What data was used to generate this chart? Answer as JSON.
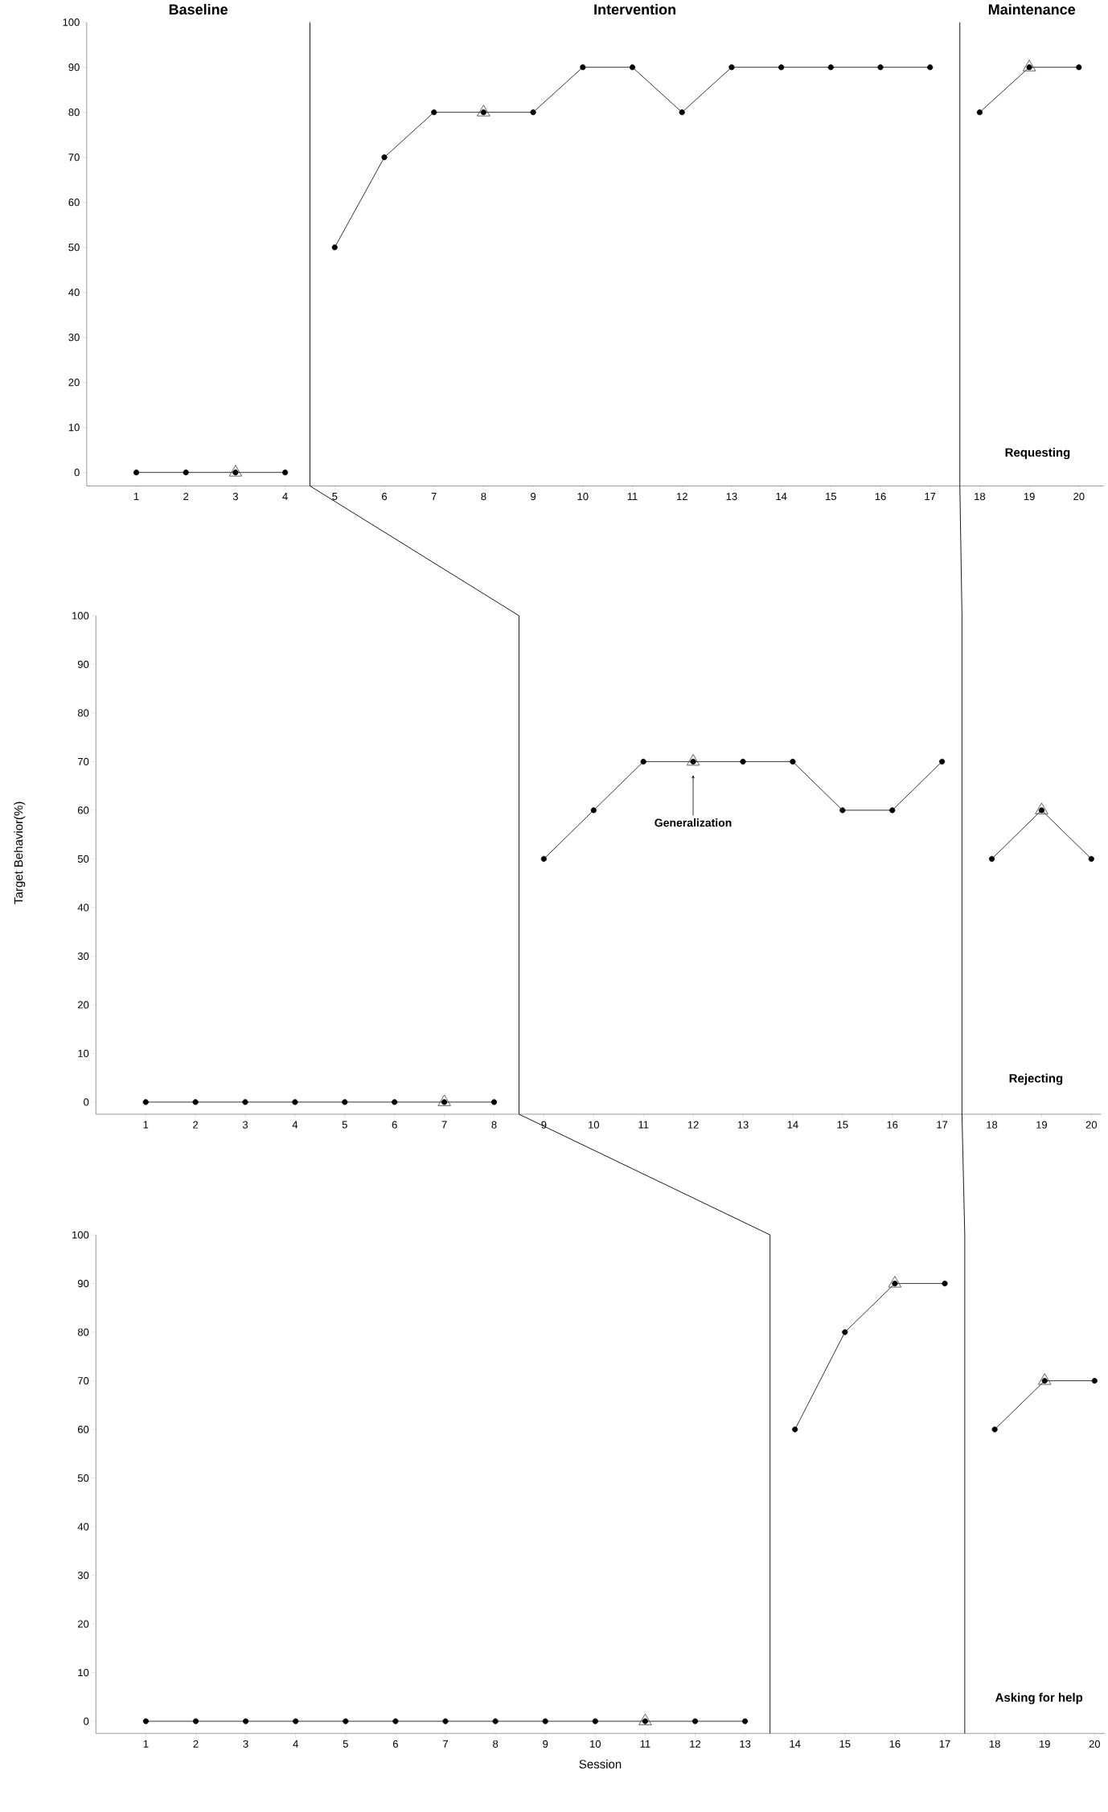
{
  "chart_data": [
    {
      "type": "line",
      "title": "Requesting",
      "marker": "circle",
      "xlim": [
        0,
        20.5
      ],
      "ylim": [
        -3,
        100
      ],
      "xticks": [
        1,
        2,
        3,
        4,
        5,
        6,
        7,
        8,
        9,
        10,
        11,
        12,
        13,
        14,
        15,
        16,
        17,
        18,
        19,
        20
      ],
      "yticks": [
        0,
        10,
        20,
        30,
        40,
        50,
        60,
        70,
        80,
        90,
        100
      ],
      "annotations": [
        "Baseline",
        "Intervention",
        "Maintenance"
      ],
      "ref_lines": [
        {
          "axis": "x",
          "value": 4.5,
          "color": "#000000"
        },
        {
          "axis": "x",
          "value": 17.6,
          "color": "#000000"
        }
      ],
      "series": [
        {
          "color": "#000000",
          "x": [
            1,
            2,
            3,
            4
          ],
          "values": [
            0,
            0,
            0,
            0
          ]
        },
        {
          "color": "#000000",
          "x": [
            5,
            6,
            7,
            8,
            9,
            10,
            11,
            12,
            13,
            14,
            15,
            16,
            17
          ],
          "values": [
            50,
            70,
            80,
            80,
            80,
            90,
            90,
            80,
            90,
            90,
            90,
            90,
            90
          ]
        },
        {
          "color": "#000000",
          "x": [
            18,
            19,
            20
          ],
          "values": [
            80,
            90,
            90
          ]
        },
        {
          "type": "scatter",
          "marker": "triangle",
          "color": "#505050",
          "x": [
            3,
            8,
            19
          ],
          "values": [
            0,
            80,
            90
          ]
        }
      ]
    },
    {
      "type": "line",
      "title": "Rejecting",
      "ylabel": "Target Behavior(%)",
      "marker": "circle",
      "xlim": [
        0,
        20.2
      ],
      "ylim": [
        -2.5,
        100
      ],
      "xticks": [
        1,
        2,
        3,
        4,
        5,
        6,
        7,
        8,
        9,
        10,
        11,
        12,
        13,
        14,
        15,
        16,
        17,
        18,
        19,
        20
      ],
      "yticks": [
        0,
        10,
        20,
        30,
        40,
        50,
        60,
        70,
        80,
        90,
        100
      ],
      "annotations": [
        "Generalization"
      ],
      "ref_lines": [
        {
          "axis": "x",
          "value": 8.5,
          "color": "#000000"
        },
        {
          "axis": "x",
          "value": 17.4,
          "color": "#000000"
        }
      ],
      "series": [
        {
          "color": "#000000",
          "x": [
            1,
            2,
            3,
            4,
            5,
            6,
            7,
            8
          ],
          "values": [
            0,
            0,
            0,
            0,
            0,
            0,
            0,
            0
          ]
        },
        {
          "color": "#000000",
          "x": [
            9,
            10,
            11,
            12,
            13,
            14,
            15,
            16,
            17
          ],
          "values": [
            50,
            60,
            70,
            70,
            70,
            70,
            60,
            60,
            70
          ]
        },
        {
          "color": "#000000",
          "x": [
            18,
            19,
            20
          ],
          "values": [
            50,
            60,
            50
          ]
        },
        {
          "type": "scatter",
          "marker": "triangle",
          "color": "#505050",
          "x": [
            7,
            12,
            19
          ],
          "values": [
            0,
            70,
            60
          ]
        }
      ]
    },
    {
      "type": "line",
      "title": "Asking for help",
      "xlabel": "Session",
      "marker": "circle",
      "xlim": [
        0,
        20.2
      ],
      "ylim": [
        -2.5,
        100
      ],
      "xticks": [
        1,
        2,
        3,
        4,
        5,
        6,
        7,
        8,
        9,
        10,
        11,
        12,
        13,
        14,
        15,
        16,
        17,
        18,
        19,
        20
      ],
      "yticks": [
        0,
        10,
        20,
        30,
        40,
        50,
        60,
        70,
        80,
        90,
        100
      ],
      "ref_lines": [
        {
          "axis": "x",
          "value": 13.5,
          "color": "#000000"
        },
        {
          "axis": "x",
          "value": 17.4,
          "color": "#000000"
        }
      ],
      "series": [
        {
          "color": "#000000",
          "x": [
            1,
            2,
            3,
            4,
            5,
            6,
            7,
            8,
            9,
            10,
            11,
            12,
            13
          ],
          "values": [
            0,
            0,
            0,
            0,
            0,
            0,
            0,
            0,
            0,
            0,
            0,
            0,
            0
          ]
        },
        {
          "color": "#000000",
          "x": [
            14,
            15,
            16,
            17
          ],
          "values": [
            60,
            80,
            90,
            90
          ]
        },
        {
          "color": "#000000",
          "x": [
            18,
            19,
            20
          ],
          "values": [
            60,
            70,
            70
          ]
        },
        {
          "type": "scatter",
          "marker": "triangle",
          "color": "#505050",
          "x": [
            11,
            16,
            19
          ],
          "values": [
            0,
            90,
            70
          ]
        }
      ]
    }
  ]
}
